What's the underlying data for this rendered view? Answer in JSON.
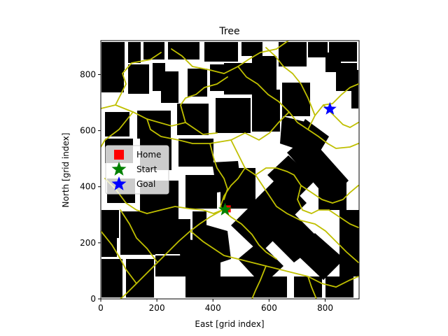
{
  "chart_data": {
    "type": "scatter",
    "title": "Tree",
    "xlabel": "East [grid index]",
    "ylabel": "North [grid index]",
    "xlim": [
      0,
      921
    ],
    "ylim": [
      0,
      921
    ],
    "xticks": [
      0,
      200,
      400,
      600,
      800
    ],
    "yticks": [
      0,
      200,
      400,
      600,
      800
    ],
    "grid": false,
    "legend_position": "center-left",
    "series": [
      {
        "name": "Home",
        "marker": "square",
        "color": "#ff0000",
        "points": [
          [
            451,
            321
          ]
        ]
      },
      {
        "name": "Start",
        "marker": "star",
        "color": "#008000",
        "points": [
          [
            443,
            318
          ]
        ]
      },
      {
        "name": "Goal",
        "marker": "star",
        "color": "#0000ff",
        "points": [
          [
            817,
            677
          ]
        ]
      }
    ],
    "tree_color": "#bfbf00",
    "obstacle_color": "#000000"
  }
}
